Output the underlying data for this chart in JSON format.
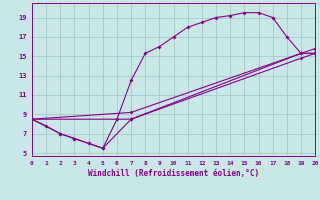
{
  "xlabel": "Windchill (Refroidissement éolien,°C)",
  "xlim": [
    0,
    20
  ],
  "ylim": [
    5,
    20
  ],
  "xticks": [
    0,
    1,
    2,
    3,
    4,
    5,
    6,
    7,
    8,
    9,
    10,
    11,
    12,
    13,
    14,
    15,
    16,
    17,
    18,
    19,
    20
  ],
  "yticks": [
    5,
    7,
    9,
    11,
    13,
    15,
    17,
    19
  ],
  "bg_color": "#c8e8e8",
  "line_color": "#880088",
  "grid_color": "#a8cece",
  "lines": [
    {
      "x": [
        0,
        1,
        2,
        3,
        4,
        5,
        6,
        7,
        8,
        9,
        10,
        11,
        12,
        13,
        14,
        15,
        16,
        17,
        18,
        19,
        20
      ],
      "y": [
        8.5,
        7.8,
        7.0,
        6.5,
        6.0,
        5.5,
        8.5,
        12.5,
        15.3,
        16.0,
        17.0,
        18.0,
        18.5,
        19.0,
        19.2,
        19.5,
        19.5,
        19.0,
        17.0,
        15.3,
        15.3
      ]
    },
    {
      "x": [
        0,
        2,
        3,
        4,
        5,
        7,
        19,
        20
      ],
      "y": [
        8.5,
        7.0,
        6.5,
        6.0,
        5.5,
        8.5,
        15.3,
        15.3
      ]
    },
    {
      "x": [
        0,
        7,
        19,
        20
      ],
      "y": [
        8.5,
        8.5,
        14.8,
        15.3
      ]
    },
    {
      "x": [
        0,
        7,
        20
      ],
      "y": [
        8.5,
        9.2,
        15.8
      ]
    }
  ]
}
